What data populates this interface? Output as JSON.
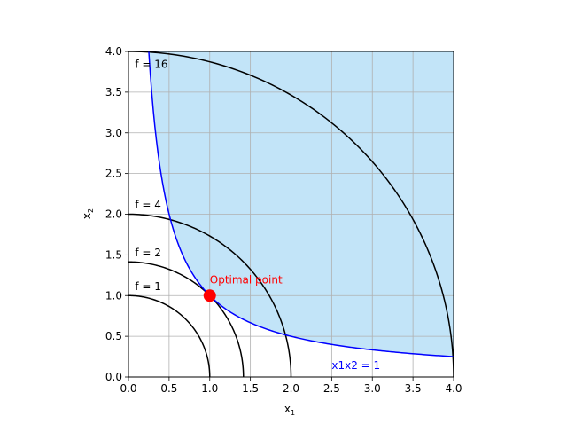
{
  "chart_data": {
    "type": "line",
    "xlabel_base": "x",
    "xlabel_sub": "1",
    "ylabel_base": "x",
    "ylabel_sub": "2",
    "xlim": [
      0,
      4
    ],
    "ylim": [
      0,
      4
    ],
    "grid": true,
    "x_ticks": [
      "0.0",
      "0.5",
      "1.0",
      "1.5",
      "2.0",
      "2.5",
      "3.0",
      "3.5",
      "4.0"
    ],
    "y_ticks": [
      "0.0",
      "0.5",
      "1.0",
      "1.5",
      "2.0",
      "2.5",
      "3.0",
      "3.5",
      "4.0"
    ],
    "contours": [
      {
        "label": "f = 1",
        "radius": 1.0,
        "label_x": 0.08,
        "label_y": 1.07
      },
      {
        "label": "f = 2",
        "radius": 1.4142,
        "label_x": 0.08,
        "label_y": 1.48
      },
      {
        "label": "f = 4",
        "radius": 2.0,
        "label_x": 0.08,
        "label_y": 2.07
      },
      {
        "label": "f = 16",
        "radius": 4.0,
        "label_x": 0.08,
        "label_y": 3.8
      }
    ],
    "constraint": {
      "label": "x1x2 = 1",
      "label_x": 2.5,
      "label_y": 0.1,
      "x_start": 0.25,
      "x_end": 4.0,
      "color": "#0000ff"
    },
    "feasible_region_color": "#c2e4f8",
    "optimal_point": {
      "label": "Optimal point",
      "x": 1.0,
      "y": 1.0,
      "color": "#ff0000"
    }
  }
}
